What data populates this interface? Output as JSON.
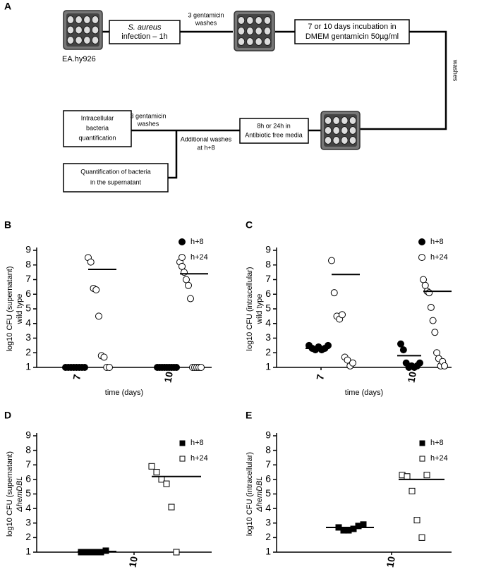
{
  "diagram": {
    "label": "A",
    "cell_line": "EA.hy926",
    "infection_species": "S. aureus",
    "infection_text": "infection – 1h",
    "wash1": [
      "3 gentamicin",
      "washes"
    ],
    "incubation": [
      "7 or 10 days incubation in",
      "DMEM gentamicin 50µg/ml"
    ],
    "wash2": "washes",
    "wash3": [
      "3 gentamicin",
      "washes"
    ],
    "antibiotic_free": [
      "8h or 24h in",
      "Antibiotic free media"
    ],
    "intracellular": [
      "Intracellular",
      "bacteria",
      "quantification"
    ],
    "additional": [
      "Additional washes",
      "at h+8"
    ],
    "supernatant": [
      "Quantification of bacteria",
      "in the supernatant"
    ]
  },
  "chart_data": [
    {
      "type": "dot",
      "panel": "B",
      "ylabel": [
        "log10 CFU (supernatant)",
        "wild type"
      ],
      "xlabel": "time (days)",
      "categories": [
        "7",
        "10"
      ],
      "ylim": [
        1,
        9
      ],
      "yticks": [
        1,
        2,
        3,
        4,
        5,
        6,
        7,
        8,
        9
      ],
      "series": [
        {
          "name": "h+8",
          "marker": "circle",
          "filled": true,
          "color": "#000000",
          "values": [
            [
              1,
              1,
              1,
              1,
              1,
              1,
              1,
              1
            ],
            [
              1,
              1,
              1,
              1,
              1,
              1,
              1,
              1,
              1
            ]
          ],
          "means": [
            1,
            1
          ]
        },
        {
          "name": "h+24",
          "marker": "circle",
          "filled": false,
          "color": "#000000",
          "values": [
            [
              8.5,
              8.2,
              6.4,
              6.3,
              4.5,
              1.8,
              1.7,
              1,
              1
            ],
            [
              8.2,
              7.9,
              7.5,
              7,
              6.6,
              5.7,
              1,
              1,
              1,
              1,
              1
            ]
          ],
          "means": [
            7.7,
            7.4
          ]
        }
      ]
    },
    {
      "type": "dot",
      "panel": "C",
      "ylabel": [
        "log10 CFU (intracellular)",
        "wild type"
      ],
      "xlabel": "time (days)",
      "categories": [
        "7",
        "10"
      ],
      "ylim": [
        1,
        9
      ],
      "yticks": [
        1,
        2,
        3,
        4,
        5,
        6,
        7,
        8,
        9
      ],
      "series": [
        {
          "name": "h+8",
          "marker": "circle",
          "filled": true,
          "color": "#000000",
          "values": [
            [
              2.5,
              2.3,
              2.2,
              2.4,
              2.2,
              2.3,
              2.5
            ],
            [
              2.6,
              2.2,
              1.3,
              1,
              1.1,
              1,
              1.1,
              1.3
            ]
          ],
          "means": [
            2.3,
            1.8
          ]
        },
        {
          "name": "h+24",
          "marker": "circle",
          "filled": false,
          "color": "#000000",
          "values": [
            [
              8.3,
              6.1,
              4.5,
              4.3,
              4.6,
              1.7,
              1.5,
              1.1,
              1.3
            ],
            [
              7,
              6.6,
              6.2,
              6.1,
              5.1,
              4.2,
              3.4,
              2,
              1.6,
              1.1,
              1.4,
              1.1
            ]
          ],
          "means": [
            7.35,
            6.2
          ]
        }
      ]
    },
    {
      "type": "dot",
      "panel": "D",
      "ylabel": [
        "log10 CFU (supernatant)",
        "ΔhemDBL"
      ],
      "categories": [
        "10"
      ],
      "ylim": [
        1,
        9
      ],
      "yticks": [
        1,
        2,
        3,
        4,
        5,
        6,
        7,
        8,
        9
      ],
      "series": [
        {
          "name": "h+8",
          "marker": "square",
          "filled": true,
          "color": "#000000",
          "values": [
            [
              1,
              1,
              1,
              1,
              1,
              1.1
            ]
          ],
          "means": [
            1.05
          ]
        },
        {
          "name": "h+24",
          "marker": "square",
          "filled": false,
          "color": "#000000",
          "values": [
            [
              6.9,
              6.5,
              6,
              5.7,
              4.1,
              1
            ]
          ],
          "means": [
            6.2
          ]
        }
      ]
    },
    {
      "type": "dot",
      "panel": "E",
      "ylabel": [
        "log10 CFU (intracellular)",
        "ΔhemDBL"
      ],
      "categories": [
        "10"
      ],
      "ylim": [
        1,
        9
      ],
      "yticks": [
        1,
        2,
        3,
        4,
        5,
        6,
        7,
        8,
        9
      ],
      "series": [
        {
          "name": "h+8",
          "marker": "square",
          "filled": true,
          "color": "#000000",
          "values": [
            [
              2.7,
              2.5,
              2.5,
              2.6,
              2.8,
              2.9
            ]
          ],
          "means": [
            2.7
          ]
        },
        {
          "name": "h+24",
          "marker": "square",
          "filled": false,
          "color": "#000000",
          "values": [
            [
              6.3,
              6.2,
              5.2,
              3.2,
              2,
              6.3
            ]
          ],
          "means": [
            6
          ]
        }
      ]
    }
  ]
}
